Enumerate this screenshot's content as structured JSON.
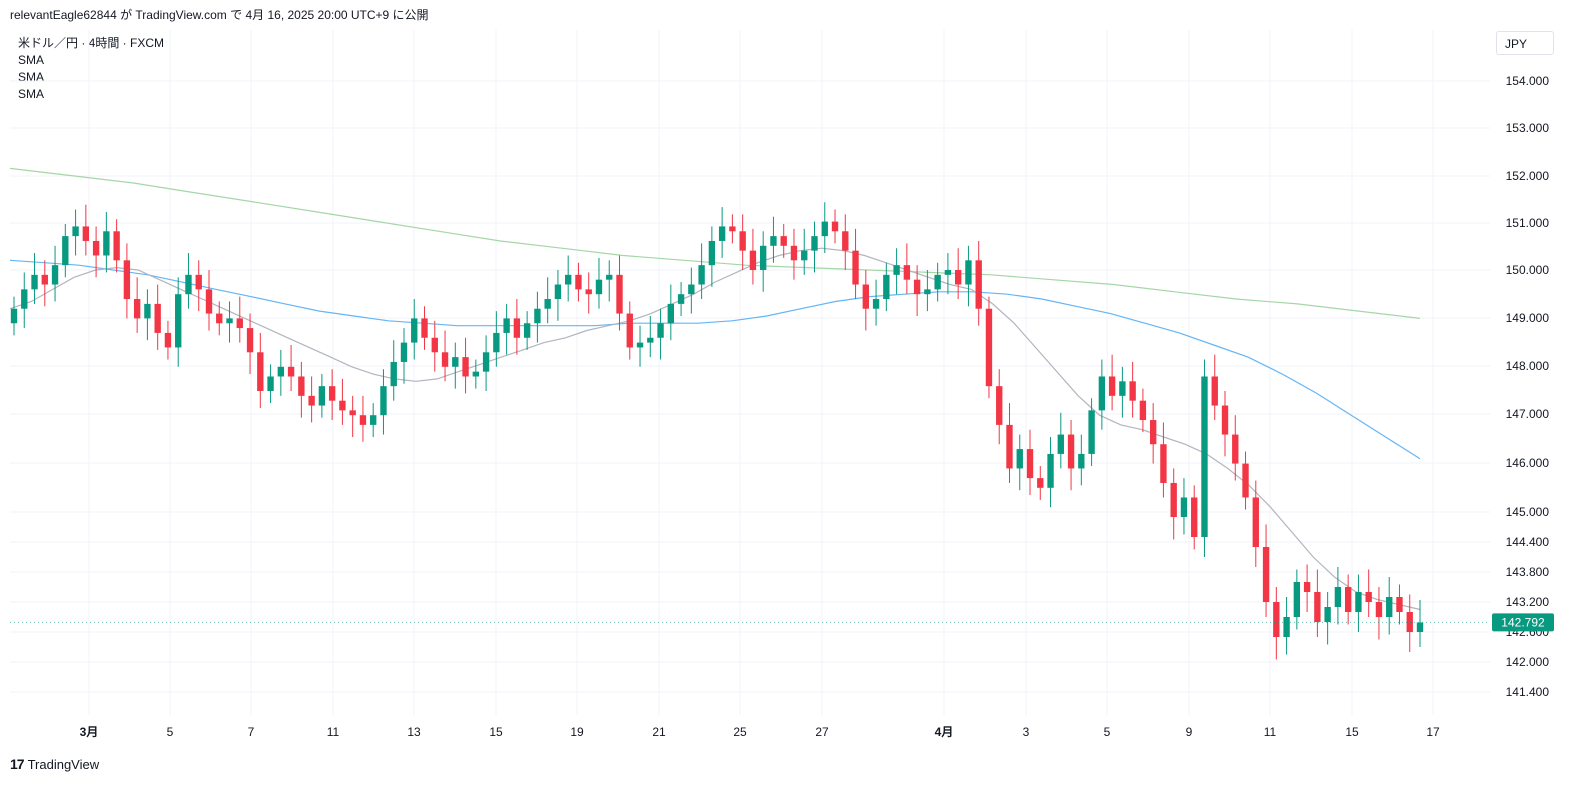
{
  "header": {
    "publish_line": "relevantEagle62844 が TradingView.com で 4月 16, 2025 20:00 UTC+9 に公開"
  },
  "legend": {
    "symbol_line": "米ドル／円 · 4時間 · FXCM",
    "indicators": [
      "SMA",
      "SMA",
      "SMA"
    ]
  },
  "currency_button": "JPY",
  "footer": {
    "brand": "TradingView",
    "logo_glyph": "17"
  },
  "colors": {
    "up": "#089981",
    "down": "#f23645",
    "sma_short": "#b2b5be",
    "sma_mid": "#64b5f6",
    "sma_long": "#a5d6a7",
    "grid": "#f0f3fa",
    "last_price_bg": "#089981"
  },
  "chart_data": {
    "type": "candlestick",
    "symbol": "USDJPY",
    "timeframe": "4h",
    "y_tick_labels": [
      "154.000",
      "153.000",
      "152.000",
      "151.000",
      "150.000",
      "149.000",
      "148.000",
      "147.000",
      "146.000",
      "145.000",
      "144.400",
      "143.800",
      "143.200",
      "142.600",
      "142.000",
      "141.400"
    ],
    "x_tick_labels": [
      {
        "label": "3月",
        "bold": true
      },
      {
        "label": "5",
        "bold": false
      },
      {
        "label": "7",
        "bold": false
      },
      {
        "label": "11",
        "bold": false
      },
      {
        "label": "13",
        "bold": false
      },
      {
        "label": "15",
        "bold": false
      },
      {
        "label": "19",
        "bold": false
      },
      {
        "label": "21",
        "bold": false
      },
      {
        "label": "25",
        "bold": false
      },
      {
        "label": "27",
        "bold": false
      },
      {
        "label": "4月",
        "bold": true
      },
      {
        "label": "3",
        "bold": false
      },
      {
        "label": "5",
        "bold": false
      },
      {
        "label": "9",
        "bold": false
      },
      {
        "label": "11",
        "bold": false
      },
      {
        "label": "15",
        "bold": false
      },
      {
        "label": "17",
        "bold": false
      }
    ],
    "last_price": "142.792",
    "candle_close_path": [
      149.2,
      149.6,
      149.9,
      149.7,
      150.1,
      150.7,
      150.9,
      150.6,
      150.3,
      150.8,
      150.2,
      149.4,
      149.0,
      149.3,
      148.7,
      148.4,
      149.5,
      149.9,
      149.6,
      149.1,
      148.9,
      149.0,
      148.8,
      148.3,
      147.5,
      147.8,
      148.0,
      147.8,
      147.4,
      147.2,
      147.6,
      147.3,
      147.1,
      147.0,
      146.8,
      147.0,
      147.6,
      148.1,
      148.5,
      149.0,
      148.6,
      148.3,
      148.0,
      148.2,
      147.8,
      147.9,
      148.3,
      148.7,
      149.0,
      148.6,
      148.9,
      149.2,
      149.4,
      149.7,
      149.9,
      149.6,
      149.5,
      149.8,
      149.9,
      149.1,
      148.4,
      148.5,
      148.6,
      148.9,
      149.3,
      149.5,
      149.7,
      150.1,
      150.6,
      150.9,
      150.8,
      150.4,
      150.0,
      150.5,
      150.7,
      150.5,
      150.2,
      150.4,
      150.7,
      151.0,
      150.8,
      150.4,
      149.7,
      149.2,
      149.4,
      149.9,
      150.1,
      149.8,
      149.5,
      149.6,
      149.9,
      150.0,
      149.7,
      150.2,
      149.2,
      147.6,
      146.8,
      145.9,
      146.3,
      145.7,
      145.5,
      146.2,
      146.6,
      145.9,
      146.2,
      147.1,
      147.8,
      147.4,
      147.7,
      147.3,
      146.9,
      146.4,
      145.6,
      144.9,
      145.3,
      144.5,
      147.8,
      147.2,
      146.6,
      146.0,
      145.3,
      144.3,
      143.2,
      142.5,
      142.9,
      143.6,
      143.4,
      142.8,
      143.1,
      143.5,
      143.0,
      143.4,
      143.2,
      142.9,
      143.3,
      143.0,
      142.6,
      142.79
    ],
    "sma_short": [
      149.2,
      149.35,
      149.6,
      149.85,
      150.0,
      150.05,
      150.0,
      149.8,
      149.6,
      149.4,
      149.2,
      149.0,
      148.8,
      148.6,
      148.4,
      148.2,
      148.0,
      147.85,
      147.75,
      147.7,
      147.75,
      147.9,
      148.05,
      148.2,
      148.35,
      148.5,
      148.6,
      148.75,
      148.85,
      148.95,
      149.1,
      149.3,
      149.5,
      149.75,
      149.95,
      150.15,
      150.3,
      150.4,
      150.45,
      150.4,
      150.3,
      150.15,
      150.0,
      149.85,
      149.7,
      149.6,
      149.3,
      148.9,
      148.4,
      147.9,
      147.4,
      147.0,
      146.8,
      146.7,
      146.55,
      146.4,
      146.2,
      145.9,
      145.55,
      145.1,
      144.6,
      144.1,
      143.7,
      143.4,
      143.25,
      143.15,
      143.05
    ],
    "sma_mid": [
      150.2,
      150.15,
      150.1,
      150.0,
      149.9,
      149.75,
      149.6,
      149.45,
      149.3,
      149.15,
      149.05,
      148.95,
      148.9,
      148.85,
      148.85,
      148.85,
      148.85,
      148.85,
      148.9,
      148.9,
      148.9,
      148.95,
      149.05,
      149.2,
      149.35,
      149.45,
      149.5,
      149.55,
      149.55,
      149.5,
      149.4,
      149.25,
      149.1,
      148.9,
      148.7,
      148.45,
      148.2,
      147.85,
      147.45,
      147.0,
      146.55,
      146.1
    ],
    "sma_long": [
      152.1,
      151.95,
      151.8,
      151.6,
      151.4,
      151.2,
      151.0,
      150.8,
      150.6,
      150.45,
      150.3,
      150.2,
      150.1,
      150.05,
      150.0,
      149.95,
      149.9,
      149.8,
      149.7,
      149.55,
      149.4,
      149.3,
      149.15,
      149.0
    ]
  }
}
